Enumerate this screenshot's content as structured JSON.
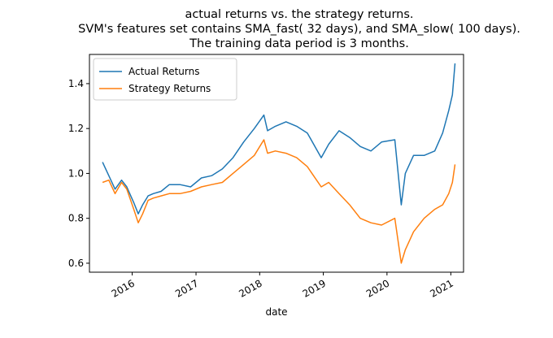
{
  "chart_data": {
    "type": "line",
    "title_lines": [
      "actual returns vs. the strategy returns.",
      "SVM's features set contains SMA_fast( 32 days), and SMA_slow( 100 days).",
      "The training data period is 3 months."
    ],
    "xlabel": "date",
    "ylabel": "",
    "x_ticks": [
      "2016",
      "2017",
      "2018",
      "2019",
      "2020",
      "2021"
    ],
    "y_ticks": [
      "0.6",
      "0.8",
      "1.0",
      "1.2",
      "1.4"
    ],
    "xlim": [
      "2015-05-01",
      "2021-03-15"
    ],
    "ylim": [
      0.56,
      1.53
    ],
    "grid": false,
    "legend_position": "top-left",
    "colors": {
      "Actual Returns": "#1f77b4",
      "Strategy Returns": "#ff7f0e"
    },
    "series": [
      {
        "name": "Actual Returns",
        "points": [
          [
            "2015-07-15",
            1.05
          ],
          [
            "2015-08-20",
            0.99
          ],
          [
            "2015-09-25",
            0.93
          ],
          [
            "2015-11-01",
            0.97
          ],
          [
            "2015-12-01",
            0.94
          ],
          [
            "2016-01-10",
            0.87
          ],
          [
            "2016-02-05",
            0.82
          ],
          [
            "2016-03-01",
            0.86
          ],
          [
            "2016-04-01",
            0.9
          ],
          [
            "2016-05-01",
            0.91
          ],
          [
            "2016-06-15",
            0.92
          ],
          [
            "2016-08-01",
            0.95
          ],
          [
            "2016-10-01",
            0.95
          ],
          [
            "2016-12-01",
            0.94
          ],
          [
            "2017-02-01",
            0.98
          ],
          [
            "2017-04-01",
            0.99
          ],
          [
            "2017-06-01",
            1.02
          ],
          [
            "2017-08-01",
            1.07
          ],
          [
            "2017-10-01",
            1.14
          ],
          [
            "2017-12-01",
            1.2
          ],
          [
            "2018-01-25",
            1.26
          ],
          [
            "2018-02-15",
            1.19
          ],
          [
            "2018-04-01",
            1.21
          ],
          [
            "2018-06-01",
            1.23
          ],
          [
            "2018-08-01",
            1.21
          ],
          [
            "2018-10-01",
            1.18
          ],
          [
            "2018-12-20",
            1.07
          ],
          [
            "2019-02-01",
            1.13
          ],
          [
            "2019-04-01",
            1.19
          ],
          [
            "2019-06-01",
            1.16
          ],
          [
            "2019-08-01",
            1.12
          ],
          [
            "2019-10-01",
            1.1
          ],
          [
            "2019-12-01",
            1.14
          ],
          [
            "2020-02-15",
            1.15
          ],
          [
            "2020-03-23",
            0.86
          ],
          [
            "2020-04-15",
            1.0
          ],
          [
            "2020-06-01",
            1.08
          ],
          [
            "2020-08-01",
            1.08
          ],
          [
            "2020-10-01",
            1.1
          ],
          [
            "2020-11-15",
            1.18
          ],
          [
            "2020-12-20",
            1.28
          ],
          [
            "2021-01-10",
            1.35
          ],
          [
            "2021-01-25",
            1.49
          ]
        ]
      },
      {
        "name": "Strategy Returns",
        "points": [
          [
            "2015-07-15",
            0.96
          ],
          [
            "2015-08-20",
            0.97
          ],
          [
            "2015-09-25",
            0.91
          ],
          [
            "2015-11-01",
            0.96
          ],
          [
            "2015-12-01",
            0.93
          ],
          [
            "2016-01-10",
            0.84
          ],
          [
            "2016-02-05",
            0.78
          ],
          [
            "2016-03-01",
            0.82
          ],
          [
            "2016-04-01",
            0.88
          ],
          [
            "2016-05-01",
            0.89
          ],
          [
            "2016-06-15",
            0.9
          ],
          [
            "2016-08-01",
            0.91
          ],
          [
            "2016-10-01",
            0.91
          ],
          [
            "2016-12-01",
            0.92
          ],
          [
            "2017-02-01",
            0.94
          ],
          [
            "2017-04-01",
            0.95
          ],
          [
            "2017-06-01",
            0.96
          ],
          [
            "2017-08-01",
            1.0
          ],
          [
            "2017-10-01",
            1.04
          ],
          [
            "2017-12-01",
            1.08
          ],
          [
            "2018-01-25",
            1.15
          ],
          [
            "2018-02-15",
            1.09
          ],
          [
            "2018-04-01",
            1.1
          ],
          [
            "2018-06-01",
            1.09
          ],
          [
            "2018-08-01",
            1.07
          ],
          [
            "2018-10-01",
            1.03
          ],
          [
            "2018-12-20",
            0.94
          ],
          [
            "2019-02-01",
            0.96
          ],
          [
            "2019-04-01",
            0.91
          ],
          [
            "2019-06-01",
            0.86
          ],
          [
            "2019-08-01",
            0.8
          ],
          [
            "2019-10-01",
            0.78
          ],
          [
            "2019-12-01",
            0.77
          ],
          [
            "2020-02-15",
            0.8
          ],
          [
            "2020-03-23",
            0.6
          ],
          [
            "2020-04-15",
            0.66
          ],
          [
            "2020-06-01",
            0.74
          ],
          [
            "2020-08-01",
            0.8
          ],
          [
            "2020-10-01",
            0.84
          ],
          [
            "2020-11-15",
            0.86
          ],
          [
            "2020-12-20",
            0.91
          ],
          [
            "2021-01-10",
            0.96
          ],
          [
            "2021-01-25",
            1.04
          ]
        ]
      }
    ]
  }
}
